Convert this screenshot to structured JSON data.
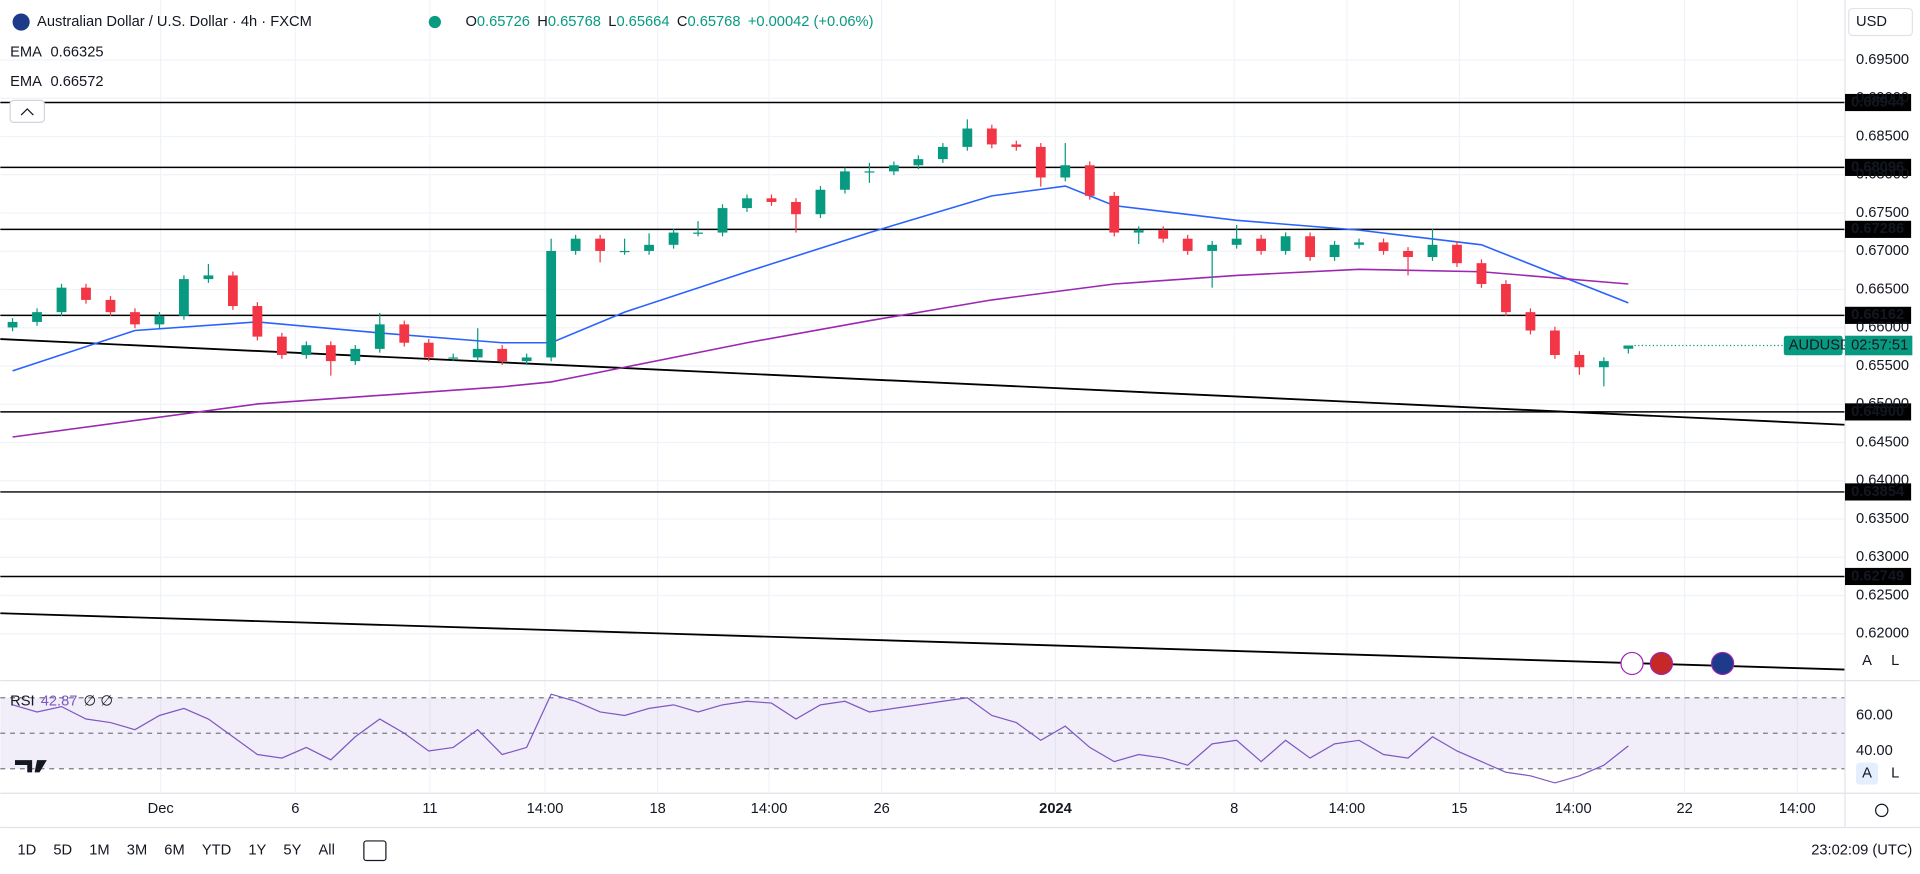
{
  "chart_data": {
    "type": "candlestick",
    "title": "Australian Dollar / U.S. Dollar · 4h · FXCM",
    "ohlc_legend": [
      {
        "label": "O",
        "value": 0.65726
      },
      {
        "label": "H",
        "value": 0.65768
      },
      {
        "label": "L",
        "value": 0.65664
      },
      {
        "label": "C",
        "value": 0.65768
      }
    ],
    "change": "+0.00042 (+0.06%)",
    "up_color": "#089981",
    "down_color": "#f23645",
    "ylim": [
      0.61404,
      0.70284
    ],
    "yticks": [
      {
        "value": 0.62,
        "label": "0.62000"
      },
      {
        "value": 0.625,
        "label": "0.62500"
      },
      {
        "value": 0.63,
        "label": "0.63000"
      },
      {
        "value": 0.635,
        "label": "0.63500"
      },
      {
        "value": 0.64,
        "label": "0.64000"
      },
      {
        "value": 0.645,
        "label": "0.64500"
      },
      {
        "value": 0.65,
        "label": "0.65000"
      },
      {
        "value": 0.655,
        "label": "0.65500"
      },
      {
        "value": 0.66,
        "label": "0.66000"
      },
      {
        "value": 0.665,
        "label": "0.66500"
      },
      {
        "value": 0.67,
        "label": "0.67000"
      },
      {
        "value": 0.675,
        "label": "0.67500"
      },
      {
        "value": 0.68,
        "label": "0.68000"
      },
      {
        "value": 0.685,
        "label": "0.68500"
      },
      {
        "value": 0.69,
        "label": "0.69000"
      },
      {
        "value": 0.695,
        "label": "0.69500"
      }
    ],
    "grid": true,
    "time_axis": [
      "Dec",
      "6",
      "11",
      "14:00",
      "18",
      "14:00",
      "26",
      "2024",
      "8",
      "14:00",
      "15",
      "14:00",
      "22",
      "14:00"
    ],
    "ohlc": [
      [
        0.66004,
        0.66126,
        0.65954,
        0.66076
      ],
      [
        0.66076,
        0.66254,
        0.66026,
        0.66204
      ],
      [
        0.66204,
        0.66574,
        0.66154,
        0.66524
      ],
      [
        0.66524,
        0.66574,
        0.66314,
        0.66364
      ],
      [
        0.66364,
        0.66414,
        0.66154,
        0.66204
      ],
      [
        0.66204,
        0.66254,
        0.65994,
        0.66044
      ],
      [
        0.66044,
        0.66206,
        0.65994,
        0.66156
      ],
      [
        0.66156,
        0.66686,
        0.66106,
        0.66636
      ],
      [
        0.66636,
        0.66834,
        0.66586,
        0.66684
      ],
      [
        0.66684,
        0.66734,
        0.66234,
        0.66284
      ],
      [
        0.66284,
        0.66334,
        0.65834,
        0.65884
      ],
      [
        0.65884,
        0.65934,
        0.65594,
        0.65644
      ],
      [
        0.65644,
        0.65822,
        0.65594,
        0.65772
      ],
      [
        0.65772,
        0.65822,
        0.65374,
        0.65564
      ],
      [
        0.65564,
        0.65774,
        0.65514,
        0.65724
      ],
      [
        0.65724,
        0.66194,
        0.65674,
        0.66044
      ],
      [
        0.66044,
        0.66094,
        0.65754,
        0.65804
      ],
      [
        0.65804,
        0.65854,
        0.65562,
        0.65612
      ],
      [
        0.65612,
        0.65662,
        0.65562,
        0.65612
      ],
      [
        0.65612,
        0.65994,
        0.65562,
        0.65724
      ],
      [
        0.65724,
        0.65774,
        0.65514,
        0.65564
      ],
      [
        0.65564,
        0.65662,
        0.65514,
        0.65612
      ],
      [
        0.65612,
        0.67164,
        0.65562,
        0.67004
      ],
      [
        0.67004,
        0.67214,
        0.66954,
        0.67164
      ],
      [
        0.67164,
        0.67214,
        0.66854,
        0.67004
      ],
      [
        0.67004,
        0.67164,
        0.66954,
        0.67004
      ],
      [
        0.67004,
        0.67234,
        0.66954,
        0.67084
      ],
      [
        0.67084,
        0.67294,
        0.67034,
        0.67244
      ],
      [
        0.67244,
        0.67394,
        0.67194,
        0.67244
      ],
      [
        0.67244,
        0.67614,
        0.67194,
        0.67564
      ],
      [
        0.67564,
        0.67742,
        0.67514,
        0.67692
      ],
      [
        0.67692,
        0.67742,
        0.67594,
        0.67644
      ],
      [
        0.67644,
        0.67694,
        0.67244,
        0.67484
      ],
      [
        0.67484,
        0.67854,
        0.67434,
        0.67804
      ],
      [
        0.67804,
        0.68094,
        0.67754,
        0.68044
      ],
      [
        0.68044,
        0.68154,
        0.67894,
        0.68044
      ],
      [
        0.68044,
        0.68174,
        0.67994,
        0.68124
      ],
      [
        0.68124,
        0.68254,
        0.68074,
        0.68204
      ],
      [
        0.68204,
        0.68414,
        0.68154,
        0.68364
      ],
      [
        0.68364,
        0.68724,
        0.68314,
        0.68604
      ],
      [
        0.68604,
        0.68654,
        0.68346,
        0.68396
      ],
      [
        0.68396,
        0.68446,
        0.68314,
        0.68364
      ],
      [
        0.68364,
        0.68414,
        0.67844,
        0.67964
      ],
      [
        0.67964,
        0.68414,
        0.67914,
        0.68124
      ],
      [
        0.68124,
        0.68174,
        0.67674,
        0.67724
      ],
      [
        0.67724,
        0.67774,
        0.67194,
        0.67244
      ],
      [
        0.67244,
        0.67326,
        0.67094,
        0.67276
      ],
      [
        0.67276,
        0.67326,
        0.67114,
        0.67164
      ],
      [
        0.67164,
        0.67214,
        0.66954,
        0.67004
      ],
      [
        0.67004,
        0.67134,
        0.66524,
        0.67084
      ],
      [
        0.67084,
        0.67344,
        0.67034,
        0.67164
      ],
      [
        0.67164,
        0.67214,
        0.66954,
        0.67004
      ],
      [
        0.67004,
        0.67246,
        0.66954,
        0.67196
      ],
      [
        0.67196,
        0.67246,
        0.66874,
        0.66924
      ],
      [
        0.66924,
        0.67134,
        0.66874,
        0.67084
      ],
      [
        0.67084,
        0.67166,
        0.67034,
        0.67116
      ],
      [
        0.67116,
        0.67166,
        0.66954,
        0.67004
      ],
      [
        0.67004,
        0.67054,
        0.66684,
        0.66924
      ],
      [
        0.66924,
        0.67294,
        0.66874,
        0.67084
      ],
      [
        0.67084,
        0.67134,
        0.66794,
        0.66844
      ],
      [
        0.66844,
        0.66894,
        0.66522,
        0.66572
      ],
      [
        0.66572,
        0.66622,
        0.66154,
        0.66204
      ],
      [
        0.66204,
        0.66254,
        0.65914,
        0.65964
      ],
      [
        0.65964,
        0.66014,
        0.65594,
        0.65644
      ],
      [
        0.65644,
        0.65694,
        0.65384,
        0.65484
      ],
      [
        0.65484,
        0.65614,
        0.65234,
        0.65564
      ],
      [
        0.65726,
        0.65768,
        0.65664,
        0.65768
      ]
    ],
    "series": [
      {
        "name": "EMA",
        "color": "#2962ff",
        "last": 0.66325,
        "x": [
          0,
          5,
          10,
          15,
          20,
          22,
          25,
          30,
          35,
          40,
          43,
          45,
          50,
          55,
          60,
          66
        ],
        "values": [
          0.65436,
          0.65964,
          0.66076,
          0.65932,
          0.65804,
          0.65804,
          0.66204,
          0.66732,
          0.67244,
          0.67724,
          0.67852,
          0.67596,
          0.67404,
          0.67276,
          0.67084,
          0.66325
        ]
      },
      {
        "name": "EMA",
        "color": "#9c27b0",
        "last": 0.66572,
        "x": [
          0,
          10,
          20,
          22,
          25,
          30,
          35,
          40,
          45,
          50,
          55,
          60,
          66
        ],
        "values": [
          0.64572,
          0.65004,
          0.65228,
          0.65292,
          0.65484,
          0.65804,
          0.66092,
          0.66364,
          0.66572,
          0.66684,
          0.66764,
          0.66732,
          0.66572
        ]
      }
    ],
    "levels": [
      0.68944,
      0.68096,
      0.67286,
      0.66162,
      {
        "value": 0.649,
        "label": "0.64900"
      },
      0.63854,
      0.62749
    ],
    "trendlines": [
      {
        "start": 0.65852,
        "end": 0.64732
      },
      {
        "start": 0.62268,
        "end": 0.61532
      }
    ],
    "price_tag": {
      "symbol": "AUDUSD",
      "value": 0.65768,
      "countdown": "02:57:51"
    },
    "rsi": {
      "name": "RSI",
      "last": 42.87,
      "extra": "∅ ∅",
      "color": "#7e57c2",
      "ylim": [
        16.2,
        79.66
      ],
      "yticks": [
        {
          "value": 60,
          "label": "60.00"
        },
        {
          "value": 40,
          "label": "40.00"
        }
      ],
      "levels": [
        70,
        50,
        30
      ],
      "values": [
        66,
        62,
        65,
        58,
        56,
        52,
        60,
        64,
        58,
        48,
        38,
        36,
        42,
        35,
        48,
        58,
        50,
        40,
        42,
        52,
        38,
        42,
        72,
        68,
        62,
        60,
        64,
        66,
        62,
        66,
        68,
        67,
        58,
        66,
        68,
        62,
        64,
        66,
        68,
        70,
        60,
        56,
        46,
        54,
        42,
        34,
        38,
        36,
        32,
        44,
        46,
        34,
        46,
        36,
        44,
        46,
        38,
        36,
        48,
        40,
        34,
        28,
        26,
        22,
        26,
        32,
        42.87
      ]
    }
  },
  "ui": {
    "currency": "USD",
    "auto": "A",
    "log": "L",
    "ranges": [
      "1D",
      "5D",
      "1M",
      "3M",
      "6M",
      "YTD",
      "1Y",
      "5Y",
      "All"
    ],
    "clock": "23:02:09 (UTC)"
  }
}
